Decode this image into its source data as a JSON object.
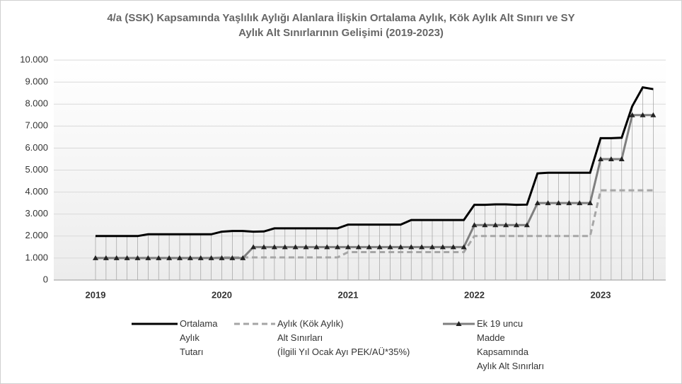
{
  "chart_data": {
    "type": "line",
    "title": "4/a (SSK) Kapsamında  Yaşlılık Aylığı Alanlara İlişkin Ortalama Aylık, Kök Aylık Alt Sınırı ve SY\nAylık Alt Sınırlarının Gelişimi (2019-2023)",
    "categories": [
      "2019",
      null,
      null,
      null,
      null,
      null,
      null,
      null,
      null,
      null,
      null,
      null,
      "2020",
      null,
      null,
      null,
      null,
      null,
      null,
      null,
      null,
      null,
      null,
      null,
      "2021",
      null,
      null,
      null,
      null,
      null,
      null,
      null,
      null,
      null,
      null,
      null,
      "2022",
      null,
      null,
      null,
      null,
      null,
      null,
      null,
      null,
      null,
      null,
      null,
      "2023",
      null,
      null,
      null,
      null,
      null
    ],
    "series": [
      {
        "name": "Ortalama\nAylık\nTutarı",
        "color": "#000000",
        "style": "solid",
        "marker": "none",
        "values": [
          2000,
          2000,
          2000,
          2000,
          2000,
          2080,
          2080,
          2080,
          2080,
          2080,
          2080,
          2080,
          2200,
          2230,
          2230,
          2200,
          2210,
          2350,
          2350,
          2350,
          2350,
          2350,
          2350,
          2350,
          2520,
          2520,
          2520,
          2520,
          2520,
          2520,
          2730,
          2730,
          2730,
          2730,
          2730,
          2730,
          3420,
          3420,
          3440,
          3440,
          3420,
          3430,
          4850,
          4880,
          4880,
          4880,
          4880,
          4880,
          6450,
          6450,
          6470,
          7900,
          8760,
          8680
        ]
      },
      {
        "name": "Aylık (Kök Aylık)\nAlt Sınırları\n(İlgili Yıl Ocak Ayı PEK/AÜ*35%)",
        "color": "#a6a6a6",
        "style": "dashed",
        "marker": "none",
        "values": [
          1000,
          1000,
          1000,
          1000,
          1000,
          1000,
          1000,
          1000,
          1000,
          1000,
          1000,
          1000,
          1030,
          1030,
          1030,
          1030,
          1030,
          1030,
          1030,
          1030,
          1030,
          1030,
          1030,
          1030,
          1270,
          1270,
          1270,
          1270,
          1270,
          1270,
          1270,
          1270,
          1270,
          1270,
          1270,
          1270,
          2000,
          2000,
          2000,
          2000,
          2000,
          2000,
          2000,
          2000,
          2000,
          2000,
          2000,
          2000,
          4080,
          4080,
          4080,
          4080,
          4080,
          4080
        ]
      },
      {
        "name": "Ek 19 uncu\nMadde\nKapsamında\nAylık Alt Sınırları",
        "color": "#7f7f7f",
        "style": "solid",
        "marker": "triangle",
        "values": [
          1000,
          1000,
          1000,
          1000,
          1000,
          1000,
          1000,
          1000,
          1000,
          1000,
          1000,
          1000,
          1000,
          1000,
          1000,
          1500,
          1500,
          1500,
          1500,
          1500,
          1500,
          1500,
          1500,
          1500,
          1500,
          1500,
          1500,
          1500,
          1500,
          1500,
          1500,
          1500,
          1500,
          1500,
          1500,
          1500,
          2500,
          2500,
          2500,
          2500,
          2500,
          2500,
          3500,
          3500,
          3500,
          3500,
          3500,
          3500,
          5500,
          5500,
          5500,
          7500,
          7500,
          7500
        ]
      }
    ],
    "ylim": [
      0,
      10000
    ],
    "yticks": [
      0,
      {
        "value": 1000,
        "label": "1.000"
      },
      {
        "value": 2000,
        "label": "2.000"
      },
      {
        "value": 3000,
        "label": "3.000"
      },
      {
        "value": 4000,
        "label": "4.000"
      },
      {
        "value": 5000,
        "label": "5.000"
      },
      {
        "value": 6000,
        "label": "6.000"
      },
      {
        "value": 7000,
        "label": "7.000"
      },
      {
        "value": 8000,
        "label": "8.000"
      },
      {
        "value": 9000,
        "label": "9.000"
      },
      {
        "value": 10000,
        "label": "10.000"
      }
    ],
    "grid": true,
    "legend": "bottom"
  }
}
